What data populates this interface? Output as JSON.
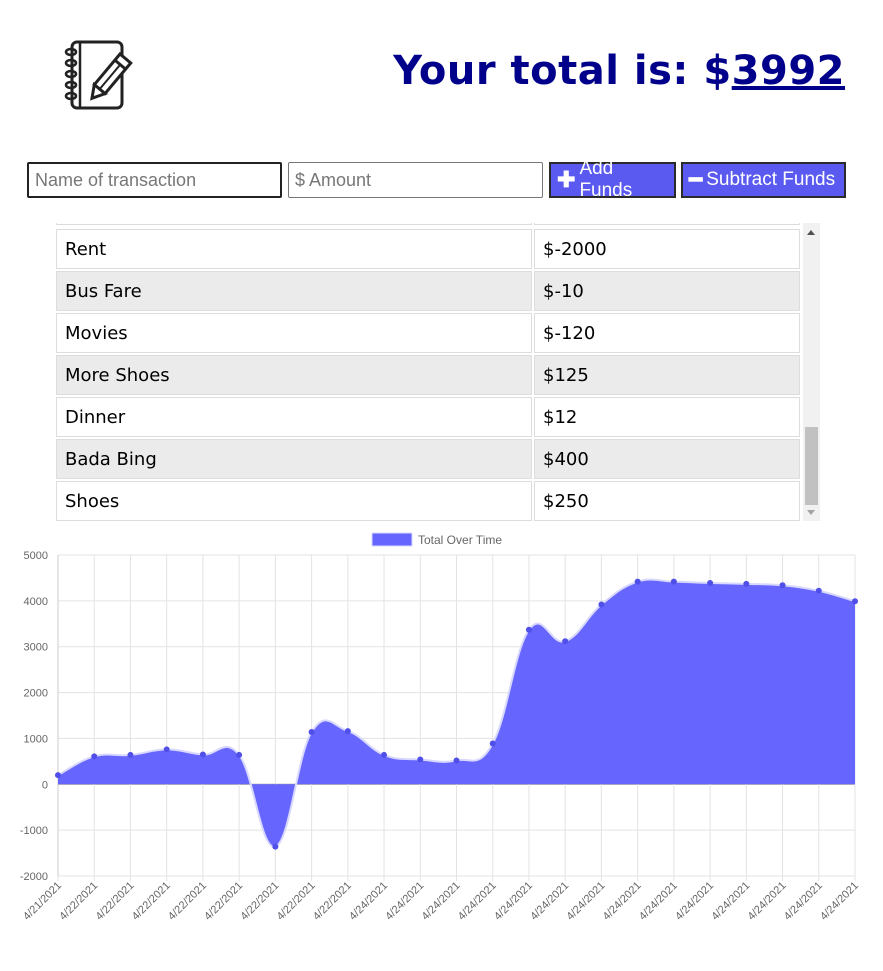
{
  "header": {
    "total_label": "Your total is: $",
    "total_value": "3992"
  },
  "form": {
    "name_placeholder": "Name of transaction",
    "amount_placeholder": "$ Amount",
    "add_label": "Add Funds",
    "subtract_label": "Subtract Funds"
  },
  "transactions": [
    {
      "name": "Rent",
      "value": "$-2000"
    },
    {
      "name": "Bus Fare",
      "value": "$-10"
    },
    {
      "name": "Movies",
      "value": "$-120"
    },
    {
      "name": "More Shoes",
      "value": "$125"
    },
    {
      "name": "Dinner",
      "value": "$12"
    },
    {
      "name": "Bada Bing",
      "value": "$400"
    },
    {
      "name": "Shoes",
      "value": "$250"
    }
  ],
  "colors": {
    "accent": "#5a5af0",
    "total_text": "#00008b",
    "chart_fill": "#6666ff",
    "row_alt": "#ebebeb"
  },
  "chart_data": {
    "type": "area",
    "legend": "Total Over Time",
    "legend_position": "top",
    "grid": true,
    "ylim": [
      -2000,
      5000
    ],
    "yticks": [
      5000,
      4000,
      3000,
      2000,
      1000,
      0,
      -1000,
      -2000
    ],
    "x": [
      "4/21/2021",
      "4/22/2021",
      "4/22/2021",
      "4/22/2021",
      "4/22/2021",
      "4/22/2021",
      "4/22/2021",
      "4/22/2021",
      "4/22/2021",
      "4/24/2021",
      "4/24/2021",
      "4/24/2021",
      "4/24/2021",
      "4/24/2021",
      "4/24/2021",
      "4/24/2021",
      "4/24/2021",
      "4/24/2021",
      "4/24/2021",
      "4/24/2021",
      "4/24/2021",
      "4/24/2021",
      "4/24/2021"
    ],
    "series": [
      {
        "name": "Total Over Time",
        "values": [
          200,
          610,
          640,
          760,
          650,
          640,
          -1360,
          1140,
          1160,
          640,
          540,
          520,
          890,
          3370,
          3120,
          3920,
          4420,
          4420,
          4390,
          4370,
          4340,
          4220,
          3992
        ]
      }
    ]
  }
}
